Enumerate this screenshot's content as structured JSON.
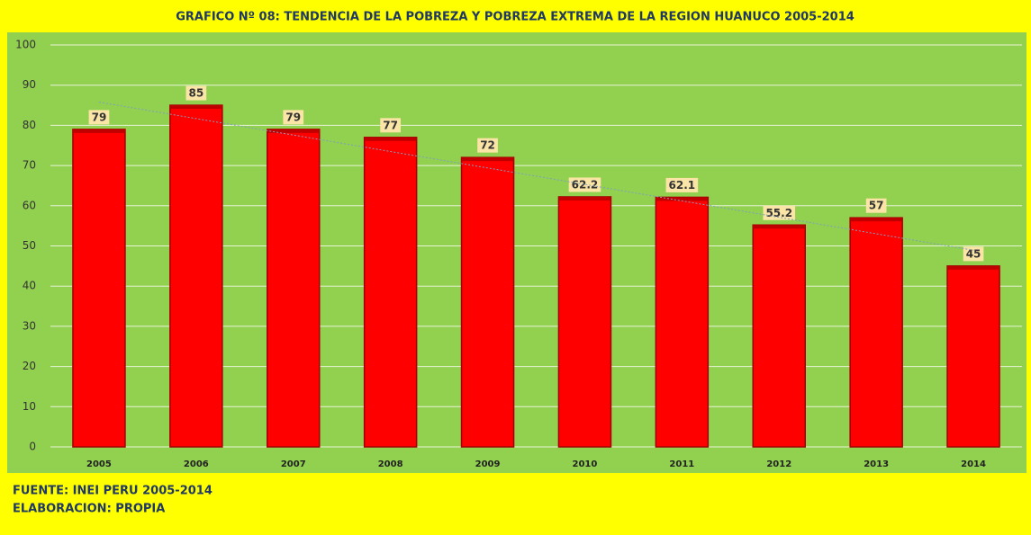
{
  "chart_data": {
    "type": "bar",
    "title": "GRAFICO Nº 08:  TENDENCIA DE LA POBREZA Y POBREZA EXTREMA DE LA REGION HUANUCO 2005-2014",
    "categories": [
      "2005",
      "2006",
      "2007",
      "2008",
      "2009",
      "2010",
      "2011",
      "2012",
      "2013",
      "2014"
    ],
    "values": [
      79,
      85,
      79,
      77,
      72,
      62.2,
      62.1,
      55.2,
      57,
      45
    ],
    "color": "#ff0000",
    "ylim": [
      0,
      100
    ],
    "yticks": [
      0,
      10,
      20,
      30,
      40,
      50,
      60,
      70,
      80,
      90,
      100
    ],
    "grid": true,
    "trendline": true,
    "notes": [
      "FUENTE: INEI PERU 2005-2014",
      "ELABORACION: PROPIA"
    ]
  }
}
